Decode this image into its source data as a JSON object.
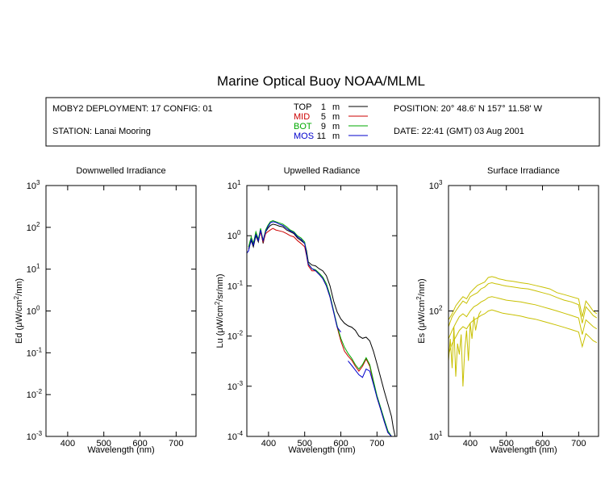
{
  "title": "Marine Optical Buoy NOAA/MLML",
  "info": {
    "deployment": "MOBY2 DEPLOYMENT: 17 CONFIG: 01",
    "station": "STATION: Lanai Mooring",
    "position": "POSITION: 20° 48.6' N   157° 11.58' W",
    "date": "DATE: 22:41 (GMT) 03 Aug 2001",
    "legend": [
      {
        "name": "TOP",
        "depth": "1",
        "unit": "m",
        "color": "#000000"
      },
      {
        "name": "MID",
        "depth": "5",
        "unit": "m",
        "color": "#cc0000"
      },
      {
        "name": "BOT",
        "depth": "9",
        "unit": "m",
        "color": "#00aa00"
      },
      {
        "name": "MOS",
        "depth": "11",
        "unit": "m",
        "color": "#0000cc"
      }
    ]
  },
  "colors": {
    "es_series": "#c8c000"
  },
  "chart_data": [
    {
      "type": "line",
      "title": "Downwelled Irradiance",
      "xlabel": "Wavelength (nm)",
      "ylabel_main": "Ed  (μW/cm",
      "ylabel_sup": "2",
      "ylabel_tail": "/nm)",
      "xlim": [
        340,
        755
      ],
      "ylim": [
        0.001,
        1000
      ],
      "log_y": true,
      "xticks": [
        400,
        500,
        600,
        700
      ],
      "yticks": [
        {
          "base": "10",
          "exp": "3",
          "value": 1000
        },
        {
          "base": "10",
          "exp": "2",
          "value": 100
        },
        {
          "base": "10",
          "exp": "1",
          "value": 10
        },
        {
          "base": "10",
          "exp": "0",
          "value": 1
        },
        {
          "base": "10",
          "exp": "-1",
          "value": 0.1
        },
        {
          "base": "10",
          "exp": "-2",
          "value": 0.01
        },
        {
          "base": "10",
          "exp": "-3",
          "value": 0.001
        }
      ],
      "series": []
    },
    {
      "type": "line",
      "title": "Upwelled Radiance",
      "xlabel": "Wavelength (nm)",
      "ylabel_main": "Lu  (μW/cm",
      "ylabel_sup": "2",
      "ylabel_tail": "/sr/nm)",
      "xlim": [
        340,
        755
      ],
      "ylim": [
        0.0001,
        10
      ],
      "log_y": true,
      "xticks": [
        400,
        500,
        600,
        700
      ],
      "yticks": [
        {
          "base": "10",
          "exp": "1",
          "value": 10
        },
        {
          "base": "10",
          "exp": "0",
          "value": 1
        },
        {
          "base": "10",
          "exp": "-1",
          "value": 0.1
        },
        {
          "base": "10",
          "exp": "-2",
          "value": 0.01
        },
        {
          "base": "10",
          "exp": "-3",
          "value": 0.001
        },
        {
          "base": "10",
          "exp": "-4",
          "value": 0.0001
        }
      ],
      "series": [
        {
          "color": "#000000",
          "x": [
            345,
            352,
            358,
            365,
            372,
            378,
            385,
            392,
            398,
            405,
            412,
            420,
            430,
            440,
            450,
            460,
            470,
            480,
            490,
            500,
            505,
            510,
            520,
            530,
            540,
            550,
            560,
            570,
            580,
            590,
            600,
            610,
            620,
            630,
            640,
            650,
            660,
            670,
            680,
            690,
            700,
            710,
            720,
            730,
            740,
            745,
            750
          ],
          "y": [
            0.55,
            0.8,
            0.6,
            1.0,
            0.75,
            1.3,
            0.7,
            1.2,
            1.4,
            1.6,
            1.7,
            1.65,
            1.55,
            1.5,
            1.3,
            1.2,
            1.1,
            0.9,
            0.8,
            0.7,
            0.5,
            0.3,
            0.26,
            0.25,
            0.22,
            0.2,
            0.16,
            0.1,
            0.05,
            0.03,
            0.022,
            0.018,
            0.016,
            0.015,
            0.013,
            0.01,
            0.009,
            0.0095,
            0.008,
            0.005,
            0.0028,
            0.0015,
            0.0008,
            0.00045,
            0.00025,
            0.00015,
            0.0001
          ]
        },
        {
          "color": "#cc0000",
          "x": [
            345,
            352,
            358,
            365,
            372,
            378,
            385,
            392,
            398,
            405,
            412,
            420,
            430,
            440,
            450,
            460,
            470,
            480,
            490,
            500,
            505,
            510,
            520,
            530,
            540,
            550,
            560,
            570,
            580,
            590,
            600,
            610,
            620,
            630,
            640,
            650,
            660,
            670,
            680,
            690,
            700,
            710,
            720,
            730,
            740,
            750
          ],
          "y": [
            0.6,
            0.9,
            0.7,
            1.1,
            0.8,
            1.2,
            0.75,
            1.1,
            1.2,
            1.3,
            1.4,
            1.3,
            1.25,
            1.2,
            1.1,
            1.0,
            0.95,
            0.8,
            0.7,
            0.6,
            0.4,
            0.25,
            0.2,
            0.2,
            0.17,
            0.14,
            0.1,
            0.06,
            0.03,
            0.015,
            0.008,
            0.005,
            0.004,
            0.0033,
            0.0025,
            0.002,
            0.0025,
            0.0035,
            0.0025,
            0.0012,
            0.0006,
            0.00035,
            0.0002,
            0.00012,
            0.0001,
            0.0001
          ]
        },
        {
          "color": "#00aa00",
          "x": [
            345,
            352,
            358,
            365,
            372,
            378,
            385,
            392,
            398,
            405,
            412,
            420,
            430,
            440,
            450,
            460,
            470,
            480,
            490,
            500,
            505,
            510,
            520,
            530,
            540,
            550,
            560,
            570,
            580,
            590,
            600,
            610,
            620,
            630,
            640,
            650,
            660,
            670,
            680,
            690,
            700,
            710,
            720,
            730,
            740,
            750
          ],
          "y": [
            0.6,
            0.95,
            0.7,
            1.2,
            0.85,
            1.4,
            0.8,
            1.3,
            1.6,
            1.9,
            2.0,
            1.9,
            1.8,
            1.7,
            1.5,
            1.3,
            1.2,
            1.0,
            0.9,
            0.75,
            0.45,
            0.28,
            0.22,
            0.21,
            0.18,
            0.15,
            0.11,
            0.065,
            0.032,
            0.016,
            0.009,
            0.006,
            0.0045,
            0.0036,
            0.0027,
            0.0022,
            0.0027,
            0.0037,
            0.0027,
            0.0013,
            0.00065,
            0.00038,
            0.00022,
            0.00013,
            0.0001,
            0.0001
          ]
        },
        {
          "color": "#0000cc",
          "x": [
            340,
            345,
            352,
            358,
            365,
            372,
            378,
            385,
            392,
            398,
            405,
            412,
            420,
            430,
            440,
            450,
            460,
            470,
            480,
            490,
            500,
            505,
            510,
            520,
            530,
            540,
            550,
            560,
            570,
            580,
            590,
            600
          ],
          "y": [
            0.45,
            0.5,
            0.85,
            0.65,
            1.05,
            0.8,
            1.3,
            0.8,
            1.2,
            1.5,
            1.8,
            1.9,
            1.85,
            1.7,
            1.6,
            1.4,
            1.25,
            1.15,
            0.95,
            0.85,
            0.7,
            0.42,
            0.27,
            0.22,
            0.2,
            0.17,
            0.14,
            0.1,
            0.06,
            0.03,
            0.015,
            0.012
          ]
        },
        {
          "color": "#0000cc",
          "x": [
            620,
            630,
            640,
            650,
            660,
            670,
            680,
            690,
            700,
            710,
            720,
            730,
            740,
            750
          ],
          "y": [
            0.0032,
            0.0026,
            0.0021,
            0.0017,
            0.0015,
            0.0022,
            0.002,
            0.0011,
            0.0006,
            0.00035,
            0.0002,
            0.00012,
            0.0001,
            0.0001
          ]
        }
      ]
    },
    {
      "type": "line",
      "title": "Surface Irradiance",
      "xlabel": "Wavelength (nm)",
      "ylabel_main": "Es  (μW/cm",
      "ylabel_sup": "2",
      "ylabel_tail": "/nm)",
      "xlim": [
        340,
        755
      ],
      "ylim": [
        10,
        1000
      ],
      "log_y": true,
      "xticks": [
        400,
        500,
        600,
        700
      ],
      "yticks": [
        {
          "base": "10",
          "exp": "3",
          "value": 1000
        },
        {
          "base": "10",
          "exp": "2",
          "value": 100
        },
        {
          "base": "10",
          "exp": "1",
          "value": 10
        }
      ],
      "series": [
        {
          "color": "#c8c000",
          "x": [
            340,
            350,
            360,
            370,
            380,
            390,
            400,
            410,
            420,
            430,
            440,
            450,
            460,
            470,
            480,
            490,
            500,
            520,
            540,
            560,
            580,
            600,
            620,
            640,
            660,
            680,
            700,
            710,
            720,
            730,
            740,
            750
          ],
          "y": [
            85,
            95,
            110,
            120,
            130,
            125,
            140,
            150,
            160,
            165,
            170,
            185,
            188,
            185,
            180,
            178,
            175,
            172,
            168,
            165,
            160,
            155,
            150,
            140,
            135,
            130,
            125,
            90,
            120,
            110,
            100,
            95
          ]
        },
        {
          "color": "#c8c000",
          "x": [
            340,
            350,
            360,
            370,
            380,
            390,
            400,
            410,
            420,
            430,
            440,
            450,
            460,
            470,
            480,
            490,
            500,
            520,
            540,
            560,
            580,
            600,
            620,
            640,
            660,
            680,
            700,
            710,
            720,
            730,
            740,
            750
          ],
          "y": [
            75,
            90,
            100,
            110,
            120,
            115,
            130,
            135,
            140,
            150,
            155,
            165,
            168,
            165,
            163,
            160,
            158,
            155,
            152,
            150,
            145,
            140,
            135,
            128,
            122,
            118,
            112,
            80,
            108,
            100,
            92,
            88
          ]
        },
        {
          "color": "#c8c000",
          "x": [
            340,
            350,
            360,
            370,
            380,
            390,
            400,
            410,
            420,
            430,
            440,
            450,
            460,
            470,
            480,
            490,
            500,
            520,
            540,
            560,
            580,
            600,
            620,
            640,
            660,
            680,
            700,
            710,
            720,
            730,
            740,
            750
          ],
          "y": [
            60,
            70,
            80,
            90,
            95,
            90,
            100,
            108,
            112,
            118,
            122,
            128,
            130,
            128,
            126,
            124,
            122,
            120,
            118,
            115,
            112,
            108,
            104,
            100,
            96,
            92,
            88,
            65,
            85,
            80,
            75,
            72
          ]
        },
        {
          "color": "#c8c000",
          "x": [
            340,
            350,
            360,
            370,
            380,
            390,
            400,
            410,
            420,
            430,
            440,
            450,
            460,
            470,
            480,
            490,
            500,
            520,
            540,
            560,
            580,
            600,
            620,
            640,
            660,
            680,
            700,
            710,
            720,
            730,
            740,
            750
          ],
          "y": [
            45,
            55,
            62,
            70,
            75,
            72,
            80,
            85,
            88,
            92,
            95,
            100,
            102,
            100,
            98,
            96,
            95,
            93,
            91,
            88,
            86,
            83,
            80,
            77,
            74,
            71,
            68,
            52,
            66,
            62,
            58,
            56
          ]
        },
        {
          "color": "#c8c000",
          "x": [
            340,
            345,
            350,
            355,
            360,
            365,
            370,
            375,
            380,
            385,
            390,
            395,
            400,
            405,
            410,
            415,
            420,
            425,
            430
          ],
          "y": [
            40,
            60,
            35,
            75,
            30,
            55,
            45,
            65,
            25,
            50,
            70,
            40,
            80,
            60,
            90,
            70,
            85,
            95,
            100
          ]
        }
      ]
    }
  ]
}
